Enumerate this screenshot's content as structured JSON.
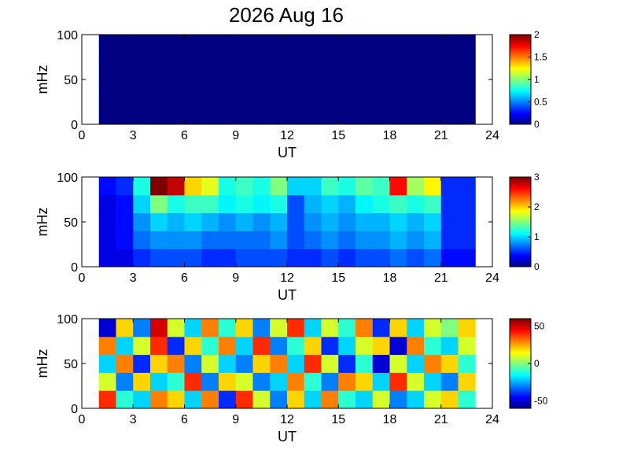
{
  "chart_data": [
    {
      "type": "heatmap",
      "title": "2026 Aug 16",
      "xlabel": "UT",
      "ylabel": "mHz",
      "xlim": [
        0,
        24
      ],
      "ylim": [
        0,
        100
      ],
      "xticks": [
        0,
        3,
        6,
        9,
        12,
        15,
        18,
        21,
        24
      ],
      "yticks": [
        0,
        50,
        100
      ],
      "clim": [
        0,
        2
      ],
      "cticks": [
        0,
        0.5,
        1,
        1.5,
        2
      ],
      "x": [
        1.5,
        2.5,
        3.5,
        4.5,
        5.5,
        6.5,
        7.5,
        8.5,
        9.5,
        10.5,
        11.5,
        12.5,
        13.5,
        14.5,
        15.5,
        16.5,
        17.5,
        18.5,
        19.5,
        20.5,
        21.5,
        22.5
      ],
      "y": [
        10,
        30,
        50,
        70,
        90
      ],
      "z": [
        [
          0,
          0,
          0,
          0,
          0,
          0,
          0,
          0,
          0,
          0,
          0,
          0,
          0,
          0,
          0,
          0,
          0,
          0,
          0,
          0,
          0,
          0
        ],
        [
          0,
          0,
          0,
          0,
          0,
          0,
          0,
          0,
          0,
          0,
          0,
          0,
          0,
          0,
          0,
          0,
          0,
          0,
          0,
          0,
          0,
          0
        ],
        [
          0,
          0,
          0,
          0,
          0,
          0,
          0,
          0,
          0,
          0,
          0,
          0,
          0,
          0,
          0,
          0,
          0,
          0,
          0,
          0,
          0,
          0
        ],
        [
          0,
          0,
          0,
          0,
          0,
          0,
          0,
          0,
          0,
          0,
          0,
          0,
          0,
          0,
          0,
          0,
          0,
          0,
          0,
          0,
          0,
          0
        ],
        [
          0,
          0,
          0,
          0,
          0,
          0,
          0,
          0,
          0,
          0,
          0,
          0,
          0,
          0,
          0,
          0,
          0,
          0,
          0,
          0,
          0,
          0
        ]
      ]
    },
    {
      "type": "heatmap",
      "xlabel": "UT",
      "ylabel": "mHz",
      "xlim": [
        0,
        24
      ],
      "ylim": [
        0,
        100
      ],
      "xticks": [
        0,
        3,
        6,
        9,
        12,
        15,
        18,
        21,
        24
      ],
      "yticks": [
        0,
        50,
        100
      ],
      "clim": [
        0,
        3
      ],
      "cticks": [
        0,
        1,
        2,
        3
      ],
      "x": [
        1.5,
        2.5,
        3.5,
        4.5,
        5.5,
        6.5,
        7.5,
        8.5,
        9.5,
        10.5,
        11.5,
        12.5,
        13.5,
        14.5,
        15.5,
        16.5,
        17.5,
        18.5,
        19.5,
        20.5,
        21.5,
        22.5
      ],
      "y": [
        10,
        30,
        50,
        70,
        90
      ],
      "z": [
        [
          0.3,
          0.3,
          0.5,
          0.6,
          0.6,
          0.6,
          0.5,
          0.5,
          0.6,
          0.6,
          0.6,
          0.5,
          0.5,
          0.6,
          0.5,
          0.6,
          0.6,
          0.7,
          0.6,
          0.7,
          0.4,
          0.4
        ],
        [
          0.3,
          0.4,
          0.7,
          0.8,
          0.8,
          0.8,
          0.7,
          0.7,
          0.7,
          0.7,
          0.8,
          0.6,
          0.7,
          0.8,
          0.7,
          0.8,
          0.8,
          0.9,
          0.8,
          0.9,
          0.5,
          0.5
        ],
        [
          0.3,
          0.4,
          0.8,
          1.0,
          0.9,
          1.0,
          0.9,
          0.8,
          0.9,
          0.8,
          0.9,
          0.6,
          0.8,
          0.9,
          0.8,
          0.9,
          0.9,
          1.0,
          0.9,
          1.0,
          0.5,
          0.5
        ],
        [
          0.3,
          0.4,
          1.0,
          1.5,
          1.2,
          1.3,
          1.3,
          1.1,
          1.2,
          1.1,
          1.2,
          0.6,
          0.9,
          1.0,
          0.9,
          1.1,
          1.2,
          1.3,
          1.2,
          1.3,
          0.5,
          0.5
        ],
        [
          0.4,
          0.5,
          1.2,
          3,
          2.8,
          2.0,
          1.8,
          1.2,
          1.3,
          1.2,
          1.5,
          1.0,
          1.0,
          1.3,
          1.2,
          1.4,
          1.3,
          2.6,
          1.6,
          1.9,
          0.5,
          0.5
        ]
      ]
    },
    {
      "type": "heatmap",
      "xlabel": "UT",
      "ylabel": "mHz",
      "xlim": [
        0,
        24
      ],
      "ylim": [
        0,
        100
      ],
      "xticks": [
        0,
        3,
        6,
        9,
        12,
        15,
        18,
        21,
        24
      ],
      "yticks": [
        0,
        50,
        100
      ],
      "clim": [
        -60,
        60
      ],
      "cticks": [
        -50,
        0,
        50
      ],
      "x": [
        1.5,
        2.5,
        3.5,
        4.5,
        5.5,
        6.5,
        7.5,
        8.5,
        9.5,
        10.5,
        11.5,
        12.5,
        13.5,
        14.5,
        15.5,
        16.5,
        17.5,
        18.5,
        19.5,
        20.5,
        21.5,
        22.5
      ],
      "y": [
        10,
        30,
        50,
        70,
        90
      ],
      "z": [
        [
          40,
          -10,
          -20,
          30,
          20,
          -20,
          30,
          -40,
          40,
          10,
          -30,
          20,
          -20,
          30,
          -10,
          -20,
          10,
          -30,
          -20,
          10,
          20,
          -10
        ],
        [
          10,
          -30,
          20,
          -20,
          -10,
          40,
          -30,
          20,
          10,
          -30,
          -20,
          30,
          -10,
          -30,
          30,
          20,
          -20,
          40,
          10,
          -20,
          -30,
          20
        ],
        [
          -20,
          30,
          -40,
          20,
          30,
          -30,
          10,
          -20,
          -30,
          20,
          30,
          -20,
          40,
          10,
          -40,
          -10,
          -50,
          10,
          -20,
          30,
          20,
          -10
        ],
        [
          30,
          -20,
          10,
          40,
          -40,
          20,
          -10,
          30,
          -20,
          40,
          -30,
          -10,
          20,
          -40,
          -20,
          10,
          20,
          -50,
          30,
          -10,
          -20,
          10
        ],
        [
          -50,
          20,
          -30,
          50,
          10,
          -20,
          30,
          -10,
          20,
          -30,
          10,
          40,
          -20,
          10,
          -10,
          30,
          -40,
          20,
          -20,
          10,
          0,
          20
        ]
      ]
    }
  ]
}
